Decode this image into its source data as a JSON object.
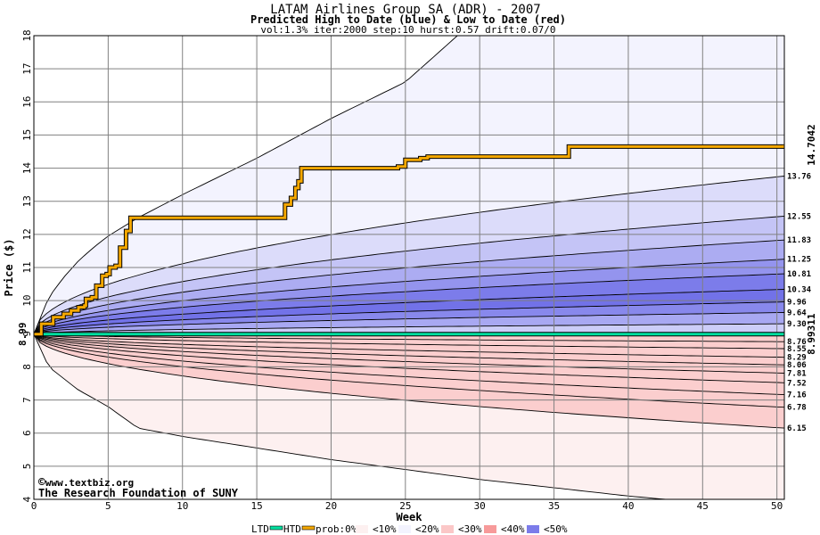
{
  "chart_data": {
    "type": "area",
    "title": "LATAM Airlines Group SA (ADR) - 2007",
    "subtitle": "Predicted High to Date (blue) &  Low to Date (red)",
    "params": "vol:1.3% iter:2000 step:10 hurst:0.57 drift:0.07/0",
    "xlabel": "Week",
    "ylabel": "Price ($)",
    "xlim": [
      0,
      50.5
    ],
    "ylim": [
      4,
      18
    ],
    "xticks": [
      0,
      5,
      10,
      15,
      20,
      25,
      30,
      35,
      40,
      45,
      50
    ],
    "yticks": [
      4,
      5,
      6,
      7,
      8,
      9,
      10,
      11,
      12,
      13,
      14,
      15,
      16,
      17,
      18
    ],
    "grid": true,
    "start_price": "8.99",
    "htd_final_label": "14.7042",
    "ltd_final_label": "8.99311",
    "upper_band_labels": [
      "13.76",
      "12.55",
      "11.83",
      "11.25",
      "10.81",
      "10.34",
      "9.96",
      "9.64",
      "9.30"
    ],
    "lower_band_labels": [
      "8.76",
      "8.55",
      "8.29",
      "8.06",
      "7.81",
      "7.52",
      "7.16",
      "6.78",
      "6.15"
    ],
    "upper_band_values": [
      13.76,
      12.55,
      11.83,
      11.25,
      10.81,
      10.34,
      9.96,
      9.64,
      9.3
    ],
    "lower_band_values": [
      8.76,
      8.55,
      8.29,
      8.06,
      7.81,
      7.52,
      7.16,
      6.78,
      6.15
    ],
    "upper_envelope": [
      [
        0,
        8.99
      ],
      [
        1,
        10.1
      ],
      [
        2,
        10.7
      ],
      [
        3,
        11.2
      ],
      [
        4,
        11.6
      ],
      [
        5,
        11.95
      ],
      [
        7,
        12.5
      ],
      [
        10,
        13.2
      ],
      [
        15,
        14.3
      ],
      [
        20,
        15.5
      ],
      [
        25,
        16.6
      ],
      [
        28.5,
        18.0
      ]
    ],
    "lower_envelope": [
      [
        0,
        8.99
      ],
      [
        1,
        8.0
      ],
      [
        3,
        7.3
      ],
      [
        5,
        6.8
      ],
      [
        7,
        6.15
      ],
      [
        10,
        5.9
      ],
      [
        15,
        5.55
      ],
      [
        20,
        5.2
      ],
      [
        25,
        4.9
      ],
      [
        30,
        4.6
      ],
      [
        35,
        4.35
      ],
      [
        40,
        4.1
      ],
      [
        42.5,
        4.0
      ]
    ],
    "htd_series": [
      [
        0,
        8.99
      ],
      [
        0.5,
        9.3
      ],
      [
        1.3,
        9.5
      ],
      [
        2,
        9.6
      ],
      [
        2.5,
        9.7
      ],
      [
        3,
        9.8
      ],
      [
        3.4,
        9.85
      ],
      [
        3.5,
        10.05
      ],
      [
        3.9,
        10.1
      ],
      [
        4.2,
        10.45
      ],
      [
        4.6,
        10.75
      ],
      [
        4.9,
        10.8
      ],
      [
        5.1,
        11.0
      ],
      [
        5.5,
        11.05
      ],
      [
        5.8,
        11.6
      ],
      [
        6.2,
        12.1
      ],
      [
        6.5,
        12.5
      ],
      [
        16.5,
        12.5
      ],
      [
        16.9,
        12.9
      ],
      [
        17.3,
        13.1
      ],
      [
        17.6,
        13.4
      ],
      [
        17.8,
        13.6
      ],
      [
        18.0,
        14.0
      ],
      [
        24.5,
        14.05
      ],
      [
        25.0,
        14.25
      ],
      [
        26.0,
        14.3
      ],
      [
        26.5,
        14.35
      ],
      [
        35.5,
        14.35
      ],
      [
        36.0,
        14.65
      ],
      [
        50.5,
        14.7
      ]
    ],
    "ltd_series": [
      [
        0,
        8.99
      ],
      [
        50.5,
        8.99
      ]
    ],
    "legend": {
      "ltd": "LTD",
      "htd": "HTD",
      "prob_prefix": "prob:0%",
      "entries": [
        "<10%",
        "<20%",
        "<30%",
        "<40%",
        "<50%"
      ]
    },
    "legend_placement": "bottom",
    "colors": {
      "upper_bands": [
        "#f3f3fe",
        "#dcdcfa",
        "#c4c4f6",
        "#acacf2",
        "#9494ee",
        "#7c7cea",
        "#7272e8",
        "#8888ec",
        "#a8a8f2",
        "#cccdf8"
      ],
      "lower_bands": [
        "#fdf0f0",
        "#fddcdc",
        "#fbc7c7",
        "#f9b0b0",
        "#f79a9a",
        "#f58585",
        "#f47a7a",
        "#f68e8e",
        "#f8abab",
        "#fbcece"
      ],
      "htd": "#f5a800",
      "ltd": "#00e0a0",
      "htd_label": "#b8860b",
      "ltd_label": "#008b5a"
    }
  },
  "footer": {
    "copyright": "www.textbiz.org",
    "org": "The Research Foundation of SUNY"
  }
}
